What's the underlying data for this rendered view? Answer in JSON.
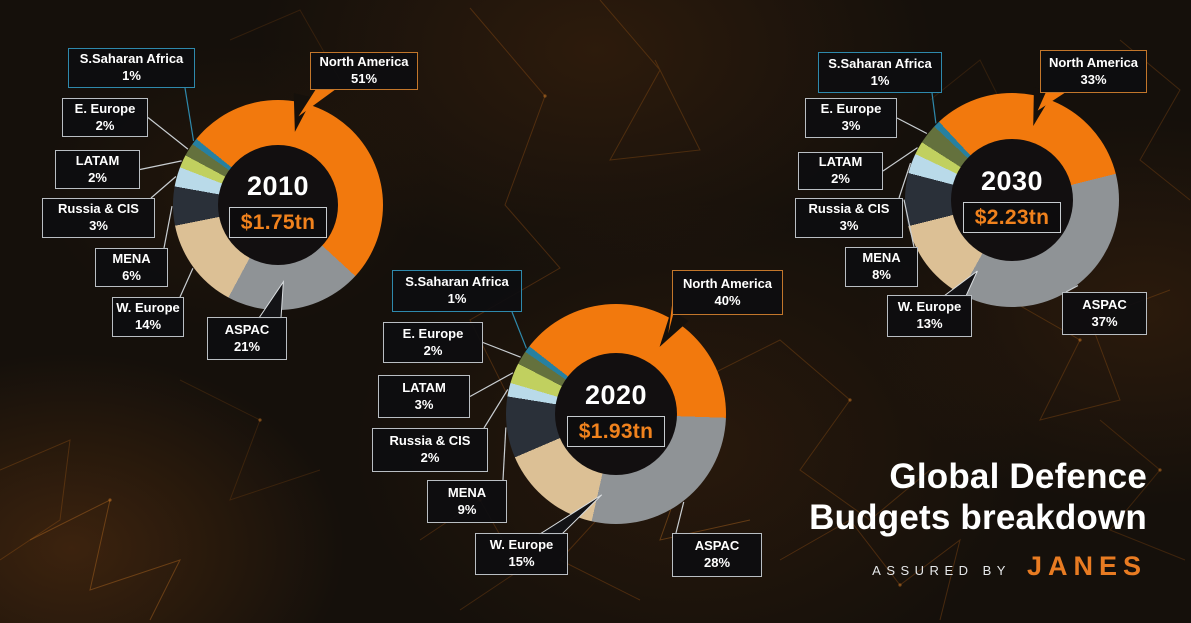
{
  "title": {
    "line1": "Global Defence",
    "line2": "Budgets breakdown",
    "assured_by": "ASSURED BY",
    "brand": "JANES"
  },
  "colors": {
    "background": "#15100B",
    "accent_orange": "#F2790D",
    "value_text": "#F0821D",
    "label_border_default": "#B9BEC3",
    "label_border_teal": "#2E89AC",
    "label_border_orange": "#C2762B",
    "callout_line": "#C9CED2",
    "regions": {
      "North America": "#F2790D",
      "ASPAC": "#8F9396",
      "W. Europe": "#DCC095",
      "MENA": "#2A3039",
      "Russia & CIS": "#B9DAE9",
      "LATAM": "#C1D05F",
      "E. Europe": "#64713D",
      "S.Saharan Africa": "#2780A0"
    }
  },
  "chart_data": [
    {
      "type": "pie",
      "year": "2010",
      "total": "$1.75tn",
      "rotation_deg": -51,
      "segments": [
        {
          "label": "North America",
          "pct": 51
        },
        {
          "label": "ASPAC",
          "pct": 21
        },
        {
          "label": "W. Europe",
          "pct": 14
        },
        {
          "label": "MENA",
          "pct": 6
        },
        {
          "label": "Russia & CIS",
          "pct": 3
        },
        {
          "label": "LATAM",
          "pct": 2
        },
        {
          "label": "E. Europe",
          "pct": 2
        },
        {
          "label": "S.Saharan Africa",
          "pct": 1
        }
      ]
    },
    {
      "type": "pie",
      "year": "2020",
      "total": "$1.93tn",
      "rotation_deg": -52,
      "segments": [
        {
          "label": "North America",
          "pct": 40
        },
        {
          "label": "ASPAC",
          "pct": 28
        },
        {
          "label": "W. Europe",
          "pct": 15
        },
        {
          "label": "MENA",
          "pct": 9
        },
        {
          "label": "Russia & CIS",
          "pct": 2
        },
        {
          "label": "LATAM",
          "pct": 3
        },
        {
          "label": "E. Europe",
          "pct": 2
        },
        {
          "label": "S.Saharan Africa",
          "pct": 1
        }
      ]
    },
    {
      "type": "pie",
      "year": "2030",
      "total": "$2.23tn",
      "rotation_deg": -43,
      "segments": [
        {
          "label": "North America",
          "pct": 33
        },
        {
          "label": "ASPAC",
          "pct": 37
        },
        {
          "label": "W. Europe",
          "pct": 13
        },
        {
          "label": "MENA",
          "pct": 8
        },
        {
          "label": "Russia & CIS",
          "pct": 3
        },
        {
          "label": "LATAM",
          "pct": 2
        },
        {
          "label": "E. Europe",
          "pct": 3
        },
        {
          "label": "S.Saharan Africa",
          "pct": 1
        }
      ]
    }
  ]
}
